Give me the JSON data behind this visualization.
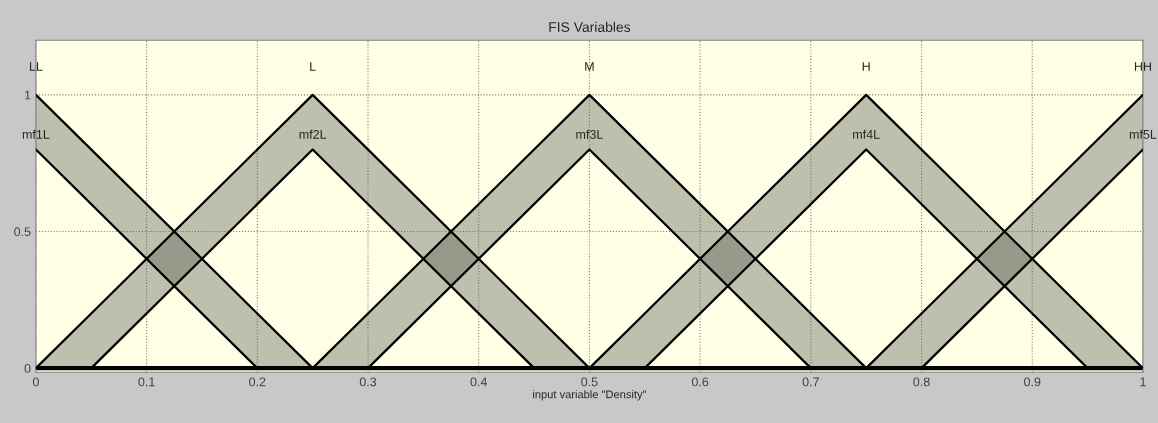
{
  "chart_data": {
    "type": "line",
    "title": "FIS Variables",
    "xlabel": "input variable \"Density\"",
    "series": [
      {
        "name": "LL",
        "color": "#000000",
        "x": [
          0,
          0.2,
          0.25
        ],
        "values": [
          1,
          0.2,
          0
        ],
        "upper": [
          1,
          0.2,
          0
        ],
        "lower": [
          0.8,
          0,
          0
        ]
      },
      {
        "name": "L",
        "color": "#000000",
        "x": [
          0,
          0.05,
          0.25,
          0.45,
          0.5
        ],
        "values": [
          0,
          0.2,
          1,
          0.2,
          0
        ],
        "upper": [
          0,
          0.2,
          1,
          0.2,
          0
        ],
        "lower": [
          0,
          0,
          0.8,
          0,
          0
        ]
      },
      {
        "name": "M",
        "color": "#000000",
        "x": [
          0.25,
          0.3,
          0.5,
          0.7,
          0.75
        ],
        "values": [
          0,
          0.2,
          1,
          0.2,
          0
        ],
        "upper": [
          0,
          0.2,
          1,
          0.2,
          0
        ],
        "lower": [
          0,
          0,
          0.8,
          0,
          0
        ]
      },
      {
        "name": "H",
        "color": "#000000",
        "x": [
          0.5,
          0.55,
          0.75,
          0.95,
          1
        ],
        "values": [
          0,
          0.2,
          1,
          0.2,
          0
        ],
        "upper": [
          0,
          0.2,
          1,
          0.2,
          0
        ],
        "lower": [
          0,
          0,
          0.8,
          0,
          0
        ]
      },
      {
        "name": "HH",
        "color": "#000000",
        "x": [
          0.75,
          0.8,
          1
        ],
        "values": [
          0,
          0.2,
          1
        ],
        "upper": [
          0,
          0.2,
          1
        ],
        "lower": [
          0,
          0,
          0.8
        ]
      },
      {
        "name": "mf1L",
        "color": "#000000",
        "x": [
          0,
          0.2
        ],
        "values": [
          0.8,
          0
        ]
      },
      {
        "name": "mf2L",
        "color": "#000000",
        "x": [
          0.05,
          0.25,
          0.45
        ],
        "values": [
          0,
          0.8,
          0
        ]
      },
      {
        "name": "mf3L",
        "color": "#000000",
        "x": [
          0.3,
          0.5,
          0.7
        ],
        "values": [
          0,
          0.8,
          0
        ]
      },
      {
        "name": "mf4L",
        "color": "#000000",
        "x": [
          0.55,
          0.75,
          0.95
        ],
        "values": [
          0,
          0.8,
          0
        ]
      },
      {
        "name": "mf5L",
        "color": "#000000",
        "x": [
          0.8,
          1
        ],
        "values": [
          0,
          0.8
        ]
      }
    ],
    "ref_lines": [
      {
        "axis": "y",
        "value": 0,
        "color": "#000000"
      }
    ],
    "xlim": [
      0,
      1
    ],
    "ylim": [
      -0.015,
      1.2
    ],
    "xticks": [
      0,
      0.1,
      0.2,
      0.3,
      0.4,
      0.5,
      0.6,
      0.7,
      0.8,
      0.9,
      1
    ],
    "yticks": [
      0,
      0.5,
      1
    ],
    "grid": true,
    "marker": "none",
    "line_style": "solid"
  }
}
